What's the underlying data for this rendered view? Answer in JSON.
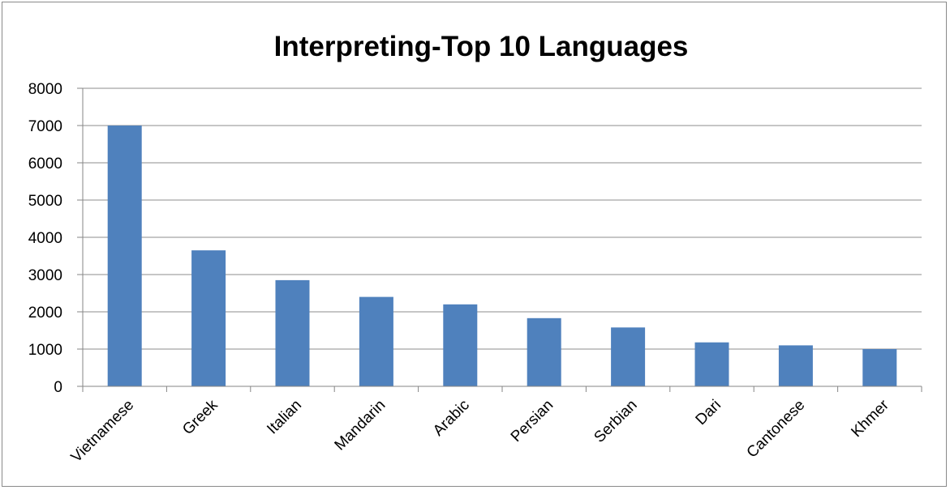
{
  "chart_data": {
    "type": "bar",
    "title": "Interpreting-Top 10 Languages",
    "xlabel": "",
    "ylabel": "",
    "categories": [
      "Vietnamese",
      "Greek",
      "Italian",
      "Mandarin",
      "Arabic",
      "Persian",
      "Serbian",
      "Dari",
      "Cantonese",
      "Khmer"
    ],
    "values": [
      7000,
      3650,
      2850,
      2400,
      2200,
      1830,
      1580,
      1180,
      1100,
      1000
    ],
    "ylim": [
      0,
      8000
    ],
    "yticks": [
      "0",
      "1000",
      "2000",
      "3000",
      "4000",
      "5000",
      "6000",
      "7000",
      "8000"
    ],
    "grid": "horizontal",
    "legend": "none",
    "colors": {
      "bar": "#4F81BD",
      "gridline": "#8C8C8C",
      "axis": "#868686",
      "frame": "#8A8A8A"
    }
  }
}
